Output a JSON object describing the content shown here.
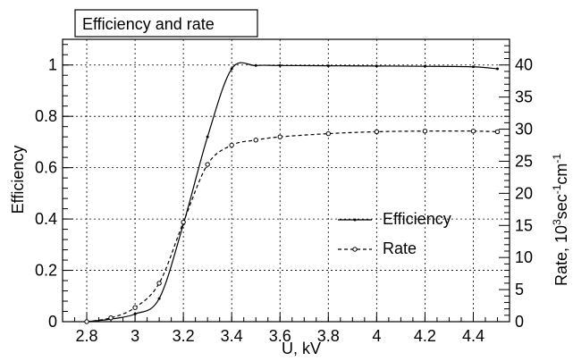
{
  "chart_data": {
    "type": "line",
    "title": "Efficiency and rate",
    "xlabel": "U, kV",
    "ylabel": "Efficiency",
    "y2label_main": "Rate, 10",
    "y2label_sup1": "3",
    "y2label_mid": "sec",
    "y2label_sup2": "-1",
    "y2label_end": "cm",
    "y2label_sup3": "-1",
    "xlim": [
      2.7,
      4.55
    ],
    "ylim": [
      0,
      1.1
    ],
    "y2lim": [
      0,
      44
    ],
    "grid": true,
    "legend_position": "center-right",
    "x_ticks": [
      "2.8",
      "3",
      "3.2",
      "3.4",
      "3.6",
      "3.8",
      "4",
      "4.2",
      "4.4"
    ],
    "y_ticks": [
      "0",
      "0.2",
      "0.4",
      "0.6",
      "0.8",
      "1"
    ],
    "y2_ticks": [
      "0",
      "5",
      "10",
      "15",
      "20",
      "25",
      "30",
      "35",
      "40"
    ],
    "series": [
      {
        "name": "Efficiency",
        "axis": "left",
        "style": "solid",
        "marker": "dot",
        "x": [
          2.8,
          2.9,
          3.0,
          3.1,
          3.2,
          3.3,
          3.4,
          3.5,
          3.6,
          3.8,
          4.0,
          4.2,
          4.4,
          4.5
        ],
        "values": [
          0.0,
          0.01,
          0.03,
          0.09,
          0.38,
          0.72,
          0.985,
          0.998,
          0.998,
          0.997,
          0.996,
          0.995,
          0.993,
          0.985
        ]
      },
      {
        "name": "Rate",
        "axis": "right",
        "style": "dashed",
        "marker": "circle",
        "x": [
          2.8,
          2.9,
          3.0,
          3.1,
          3.2,
          3.3,
          3.4,
          3.5,
          3.6,
          3.8,
          4.0,
          4.2,
          4.4,
          4.5
        ],
        "values": [
          0.0,
          0.6,
          2.2,
          6.0,
          15.5,
          24.5,
          27.5,
          28.3,
          28.8,
          29.3,
          29.6,
          29.7,
          29.7,
          29.6
        ]
      }
    ]
  }
}
